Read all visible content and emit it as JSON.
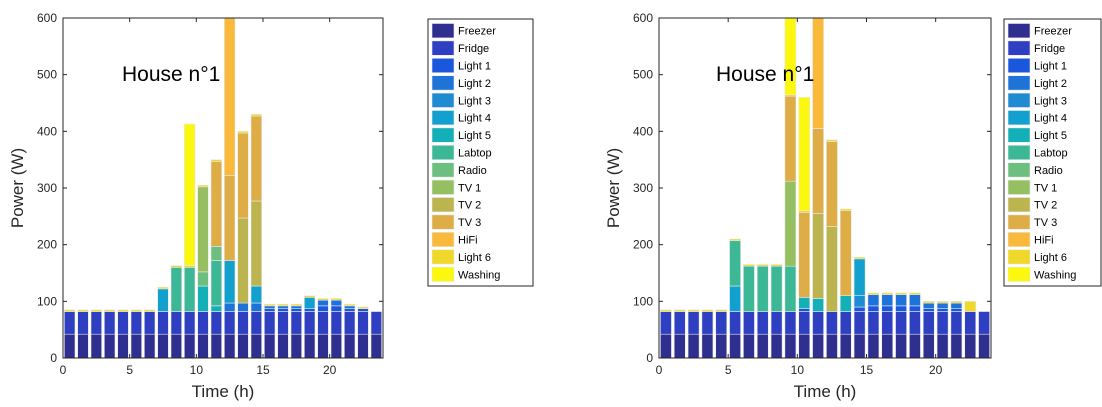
{
  "colors": {
    "Freezer": "#2f2f8f",
    "Fridge": "#2e3fc2",
    "Light 1": "#1a57dc",
    "Light 2": "#1e73d9",
    "Light 3": "#1f8bd3",
    "Light 4": "#12a0ce",
    "Light 5": "#14b0b8",
    "Labtop": "#3cb896",
    "Radio": "#6cbf7e",
    "TV 1": "#96bf62",
    "TV 2": "#bcb44e",
    "TV 3": "#dfad45",
    "HiFi": "#f9b93a",
    "Light 6": "#f0d82a",
    "Washing": "#fbf70f"
  },
  "chart_data": [
    {
      "type": "bar",
      "stacked": true,
      "title": "",
      "annotation": "House n°1",
      "xlabel": "Time (h)",
      "ylabel": "Power (W)",
      "xlim": [
        0,
        24
      ],
      "ylim": [
        0,
        600
      ],
      "xticks": [
        0,
        5,
        10,
        15,
        20
      ],
      "yticks": [
        0,
        100,
        200,
        300,
        400,
        500,
        600
      ],
      "legend_position": "outside-right",
      "x": [
        0.5,
        1.5,
        2.5,
        3.5,
        4.5,
        5.5,
        6.5,
        7.5,
        8.5,
        9.5,
        10.5,
        11.5,
        12.5,
        13.5,
        14.5,
        15.5,
        16.5,
        17.5,
        18.5,
        19.5,
        20.5,
        21.5,
        22.5,
        23.5
      ],
      "series": [
        {
          "name": "Freezer",
          "values": [
            42,
            42,
            42,
            42,
            42,
            42,
            42,
            42,
            42,
            42,
            42,
            42,
            42,
            42,
            42,
            42,
            42,
            42,
            42,
            42,
            42,
            42,
            42,
            42
          ]
        },
        {
          "name": "Fridge",
          "values": [
            40,
            40,
            40,
            40,
            40,
            40,
            40,
            40,
            40,
            40,
            40,
            40,
            40,
            40,
            40,
            40,
            40,
            40,
            40,
            40,
            40,
            40,
            40,
            40
          ]
        },
        {
          "name": "Light 1",
          "values": [
            0,
            0,
            0,
            0,
            0,
            0,
            0,
            0,
            0,
            0,
            0,
            0,
            0,
            0,
            0,
            5,
            5,
            5,
            5,
            10,
            10,
            5,
            5,
            0
          ]
        },
        {
          "name": "Light 2",
          "values": [
            0,
            0,
            0,
            0,
            0,
            0,
            0,
            0,
            0,
            0,
            0,
            0,
            15,
            15,
            15,
            5,
            5,
            5,
            0,
            10,
            10,
            5,
            0,
            0
          ]
        },
        {
          "name": "Light 3",
          "values": [
            0,
            0,
            0,
            0,
            0,
            0,
            0,
            0,
            0,
            0,
            0,
            0,
            0,
            0,
            0,
            0,
            0,
            0,
            0,
            0,
            0,
            0,
            0,
            0
          ]
        },
        {
          "name": "Light 4",
          "values": [
            0,
            0,
            0,
            0,
            0,
            0,
            0,
            40,
            0,
            0,
            0,
            0,
            75,
            0,
            30,
            0,
            0,
            0,
            20,
            0,
            0,
            0,
            0,
            0
          ]
        },
        {
          "name": "Light 5",
          "values": [
            0,
            0,
            0,
            0,
            0,
            0,
            0,
            0,
            0,
            0,
            45,
            10,
            0,
            0,
            0,
            0,
            0,
            0,
            0,
            0,
            0,
            0,
            0,
            0
          ]
        },
        {
          "name": "Labtop",
          "values": [
            0,
            0,
            0,
            0,
            0,
            0,
            0,
            0,
            78,
            78,
            0,
            80,
            0,
            0,
            0,
            0,
            0,
            0,
            0,
            0,
            0,
            0,
            0,
            0
          ]
        },
        {
          "name": "Radio",
          "values": [
            0,
            0,
            0,
            0,
            0,
            0,
            0,
            0,
            0,
            0,
            25,
            25,
            0,
            0,
            0,
            0,
            0,
            0,
            0,
            0,
            0,
            0,
            0,
            0
          ]
        },
        {
          "name": "TV 1",
          "values": [
            0,
            0,
            0,
            0,
            0,
            0,
            0,
            0,
            0,
            0,
            150,
            0,
            0,
            0,
            0,
            0,
            0,
            0,
            0,
            0,
            0,
            0,
            0,
            0
          ]
        },
        {
          "name": "TV 2",
          "values": [
            0,
            0,
            0,
            0,
            0,
            0,
            0,
            0,
            0,
            0,
            0,
            0,
            0,
            150,
            150,
            0,
            0,
            0,
            0,
            0,
            0,
            0,
            0,
            0
          ]
        },
        {
          "name": "TV 3",
          "values": [
            0,
            0,
            0,
            0,
            0,
            0,
            0,
            0,
            0,
            0,
            0,
            150,
            150,
            150,
            150,
            0,
            0,
            0,
            0,
            0,
            0,
            0,
            0,
            0
          ]
        },
        {
          "name": "HiFi",
          "values": [
            0,
            0,
            0,
            0,
            0,
            0,
            0,
            0,
            0,
            0,
            0,
            0,
            280,
            0,
            0,
            0,
            0,
            0,
            0,
            0,
            0,
            0,
            0,
            0
          ]
        },
        {
          "name": "Light 6",
          "values": [
            3,
            3,
            3,
            3,
            3,
            3,
            3,
            3,
            3,
            3,
            3,
            3,
            0,
            3,
            3,
            3,
            3,
            3,
            3,
            3,
            3,
            3,
            3,
            0
          ]
        },
        {
          "name": "Washing",
          "values": [
            0,
            0,
            0,
            0,
            0,
            0,
            0,
            0,
            0,
            250,
            0,
            0,
            0,
            0,
            0,
            0,
            0,
            0,
            0,
            0,
            0,
            0,
            0,
            0
          ]
        }
      ]
    },
    {
      "type": "bar",
      "stacked": true,
      "title": "",
      "annotation": "House n°1",
      "xlabel": "Time (h)",
      "ylabel": "Power (W)",
      "xlim": [
        0,
        24
      ],
      "ylim": [
        0,
        600
      ],
      "xticks": [
        0,
        5,
        10,
        15,
        20
      ],
      "yticks": [
        0,
        100,
        200,
        300,
        400,
        500,
        600
      ],
      "legend_position": "outside-right",
      "x": [
        0.5,
        1.5,
        2.5,
        3.5,
        4.5,
        5.5,
        6.5,
        7.5,
        8.5,
        9.5,
        10.5,
        11.5,
        12.5,
        13.5,
        14.5,
        15.5,
        16.5,
        17.5,
        18.5,
        19.5,
        20.5,
        21.5,
        22.5,
        23.5
      ],
      "series": [
        {
          "name": "Freezer",
          "values": [
            42,
            42,
            42,
            42,
            42,
            42,
            42,
            42,
            42,
            42,
            42,
            42,
            42,
            42,
            42,
            42,
            42,
            42,
            42,
            42,
            42,
            42,
            42,
            42
          ]
        },
        {
          "name": "Fridge",
          "values": [
            40,
            40,
            40,
            40,
            40,
            40,
            40,
            40,
            40,
            40,
            40,
            40,
            40,
            40,
            40,
            40,
            40,
            40,
            40,
            40,
            40,
            40,
            40,
            40
          ]
        },
        {
          "name": "Light 1",
          "values": [
            0,
            0,
            0,
            0,
            0,
            0,
            0,
            0,
            0,
            0,
            5,
            0,
            0,
            0,
            8,
            10,
            10,
            10,
            10,
            5,
            5,
            5,
            0,
            0
          ]
        },
        {
          "name": "Light 2",
          "values": [
            0,
            0,
            0,
            0,
            0,
            0,
            0,
            0,
            0,
            0,
            0,
            0,
            0,
            0,
            0,
            20,
            20,
            20,
            20,
            10,
            10,
            10,
            0,
            0
          ]
        },
        {
          "name": "Light 3",
          "values": [
            0,
            0,
            0,
            0,
            0,
            0,
            0,
            0,
            0,
            0,
            0,
            0,
            0,
            0,
            20,
            0,
            0,
            0,
            0,
            0,
            0,
            0,
            0,
            0
          ]
        },
        {
          "name": "Light 4",
          "values": [
            0,
            0,
            0,
            0,
            0,
            45,
            0,
            0,
            0,
            0,
            0,
            0,
            0,
            0,
            65,
            0,
            0,
            0,
            0,
            0,
            0,
            0,
            0,
            0
          ]
        },
        {
          "name": "Light 5",
          "values": [
            0,
            0,
            0,
            0,
            0,
            0,
            0,
            0,
            0,
            0,
            20,
            23,
            0,
            28,
            0,
            0,
            0,
            0,
            0,
            0,
            0,
            0,
            0,
            0
          ]
        },
        {
          "name": "Labtop",
          "values": [
            0,
            0,
            0,
            0,
            0,
            80,
            80,
            80,
            80,
            80,
            0,
            0,
            0,
            0,
            0,
            0,
            0,
            0,
            0,
            0,
            0,
            0,
            0,
            0
          ]
        },
        {
          "name": "Radio",
          "values": [
            0,
            0,
            0,
            0,
            0,
            0,
            0,
            0,
            0,
            0,
            0,
            0,
            0,
            0,
            0,
            0,
            0,
            0,
            0,
            0,
            0,
            0,
            0,
            0
          ]
        },
        {
          "name": "TV 1",
          "values": [
            0,
            0,
            0,
            0,
            0,
            0,
            0,
            0,
            0,
            150,
            0,
            0,
            0,
            0,
            0,
            0,
            0,
            0,
            0,
            0,
            0,
            0,
            0,
            0
          ]
        },
        {
          "name": "TV 2",
          "values": [
            0,
            0,
            0,
            0,
            0,
            0,
            0,
            0,
            0,
            0,
            0,
            150,
            150,
            0,
            0,
            0,
            0,
            0,
            0,
            0,
            0,
            0,
            0,
            0
          ]
        },
        {
          "name": "TV 3",
          "values": [
            0,
            0,
            0,
            0,
            0,
            0,
            0,
            0,
            0,
            150,
            150,
            150,
            150,
            150,
            0,
            0,
            0,
            0,
            0,
            0,
            0,
            0,
            0,
            0
          ]
        },
        {
          "name": "HiFi",
          "values": [
            0,
            0,
            0,
            0,
            0,
            0,
            0,
            0,
            0,
            0,
            0,
            200,
            0,
            0,
            0,
            0,
            0,
            0,
            0,
            0,
            0,
            0,
            0,
            0
          ]
        },
        {
          "name": "Light 6",
          "values": [
            3,
            3,
            3,
            3,
            3,
            3,
            3,
            3,
            3,
            3,
            3,
            3,
            3,
            3,
            3,
            3,
            3,
            3,
            3,
            3,
            3,
            3,
            18,
            0
          ]
        },
        {
          "name": "Washing",
          "values": [
            0,
            0,
            0,
            0,
            0,
            0,
            0,
            0,
            0,
            150,
            200,
            0,
            0,
            0,
            0,
            0,
            0,
            0,
            0,
            0,
            0,
            0,
            0,
            0
          ]
        }
      ]
    }
  ]
}
